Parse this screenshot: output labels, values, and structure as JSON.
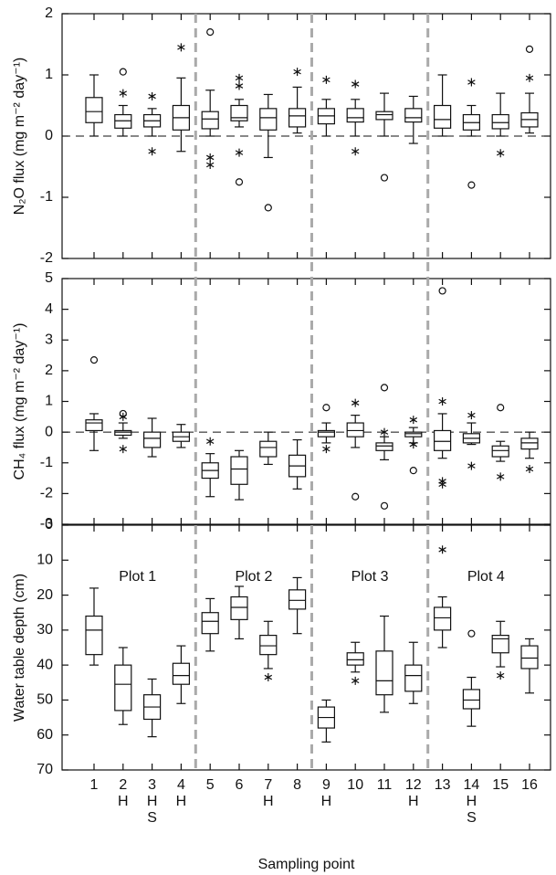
{
  "chart_data": [
    {
      "type": "box",
      "ylabel": "N₂O flux (mg m⁻² day⁻¹)",
      "ylim": [
        -2,
        2
      ],
      "yticks": [
        -2,
        -1,
        0,
        1,
        2
      ],
      "reference_line": 0,
      "boxes": [
        {
          "min": 0,
          "q1": 0.22,
          "median": 0.4,
          "q3": 0.63,
          "max": 1.0,
          "outliers": [],
          "extremes": []
        },
        {
          "min": 0,
          "q1": 0.13,
          "median": 0.25,
          "q3": 0.35,
          "max": 0.5,
          "outliers": [
            1.05
          ],
          "extremes": [
            0.7
          ]
        },
        {
          "min": 0,
          "q1": 0.15,
          "median": 0.25,
          "q3": 0.35,
          "max": 0.45,
          "outliers": [],
          "extremes": [
            0.65,
            -0.25
          ]
        },
        {
          "min": -0.25,
          "q1": 0.1,
          "median": 0.3,
          "q3": 0.5,
          "max": 0.95,
          "outliers": [],
          "extremes": [
            1.45
          ]
        },
        {
          "min": 0,
          "q1": 0.12,
          "median": 0.28,
          "q3": 0.4,
          "max": 0.75,
          "outliers": [
            1.7
          ],
          "extremes": [
            -0.35,
            -0.47
          ]
        },
        {
          "min": 0.15,
          "q1": 0.25,
          "median": 0.3,
          "q3": 0.5,
          "max": 0.6,
          "outliers": [
            -0.75
          ],
          "extremes": [
            0.95,
            0.82,
            -0.27
          ]
        },
        {
          "min": -0.35,
          "q1": 0.1,
          "median": 0.3,
          "q3": 0.45,
          "max": 0.68,
          "outliers": [
            -1.17
          ],
          "extremes": []
        },
        {
          "min": 0.05,
          "q1": 0.15,
          "median": 0.33,
          "q3": 0.45,
          "max": 0.8,
          "outliers": [],
          "extremes": [
            1.05
          ]
        },
        {
          "min": 0,
          "q1": 0.2,
          "median": 0.33,
          "q3": 0.45,
          "max": 0.6,
          "outliers": [],
          "extremes": [
            0.92
          ]
        },
        {
          "min": 0,
          "q1": 0.23,
          "median": 0.3,
          "q3": 0.45,
          "max": 0.6,
          "outliers": [],
          "extremes": [
            0.85,
            -0.25
          ]
        },
        {
          "min": 0,
          "q1": 0.27,
          "median": 0.35,
          "q3": 0.4,
          "max": 0.7,
          "outliers": [
            -0.68
          ],
          "extremes": []
        },
        {
          "min": -0.12,
          "q1": 0.23,
          "median": 0.3,
          "q3": 0.45,
          "max": 0.65,
          "outliers": [],
          "extremes": []
        },
        {
          "min": 0,
          "q1": 0.13,
          "median": 0.27,
          "q3": 0.5,
          "max": 1.0,
          "outliers": [],
          "extremes": []
        },
        {
          "min": 0,
          "q1": 0.1,
          "median": 0.22,
          "q3": 0.35,
          "max": 0.5,
          "outliers": [
            -0.8
          ],
          "extremes": [
            0.88
          ]
        },
        {
          "min": 0,
          "q1": 0.12,
          "median": 0.22,
          "q3": 0.35,
          "max": 0.7,
          "outliers": [],
          "extremes": [
            -0.28
          ]
        },
        {
          "min": 0.05,
          "q1": 0.15,
          "median": 0.27,
          "q3": 0.38,
          "max": 0.7,
          "outliers": [
            1.42
          ],
          "extremes": [
            0.95
          ]
        }
      ]
    },
    {
      "type": "box",
      "ylabel": "CH₄ flux (mg m⁻² day⁻¹)",
      "ylim": [
        -3,
        5
      ],
      "yticks": [
        -3,
        -2,
        -1,
        0,
        1,
        2,
        3,
        4,
        5
      ],
      "reference_line": 0,
      "boxes": [
        {
          "min": -0.6,
          "q1": 0.05,
          "median": 0.3,
          "q3": 0.4,
          "max": 0.6,
          "outliers": [
            2.35
          ],
          "extremes": []
        },
        {
          "min": -0.2,
          "q1": -0.1,
          "median": 0,
          "q3": 0.05,
          "max": 0.3,
          "outliers": [
            0.6
          ],
          "extremes": [
            0.5,
            -0.55
          ]
        },
        {
          "min": -0.8,
          "q1": -0.5,
          "median": -0.2,
          "q3": 0,
          "max": 0.45,
          "outliers": [],
          "extremes": []
        },
        {
          "min": -0.5,
          "q1": -0.3,
          "median": -0.15,
          "q3": 0,
          "max": 0.25,
          "outliers": [],
          "extremes": []
        },
        {
          "min": -2.1,
          "q1": -1.5,
          "median": -1.25,
          "q3": -1.0,
          "max": -0.7,
          "outliers": [],
          "extremes": [
            -0.3
          ]
        },
        {
          "min": -2.2,
          "q1": -1.7,
          "median": -1.2,
          "q3": -0.8,
          "max": -0.6,
          "outliers": [],
          "extremes": []
        },
        {
          "min": -1.05,
          "q1": -0.8,
          "median": -0.5,
          "q3": -0.3,
          "max": 0,
          "outliers": [],
          "extremes": []
        },
        {
          "min": -1.85,
          "q1": -1.45,
          "median": -1.1,
          "q3": -0.75,
          "max": -0.25,
          "outliers": [],
          "extremes": []
        },
        {
          "min": -0.35,
          "q1": -0.15,
          "median": 0,
          "q3": 0.05,
          "max": 0.3,
          "outliers": [
            0.8
          ],
          "extremes": [
            -0.55
          ]
        },
        {
          "min": -0.5,
          "q1": -0.15,
          "median": 0.05,
          "q3": 0.3,
          "max": 0.55,
          "outliers": [
            -2.1
          ],
          "extremes": [
            0.95
          ]
        },
        {
          "min": -0.9,
          "q1": -0.6,
          "median": -0.45,
          "q3": -0.35,
          "max": -0.15,
          "outliers": [
            1.45,
            -2.4
          ],
          "extremes": [
            0
          ]
        },
        {
          "min": -0.35,
          "q1": -0.15,
          "median": -0.05,
          "q3": 0,
          "max": 0.15,
          "outliers": [
            -1.25
          ],
          "extremes": [
            0.4,
            -0.4
          ]
        },
        {
          "min": -0.85,
          "q1": -0.6,
          "median": -0.3,
          "q3": 0.05,
          "max": 0.6,
          "outliers": [
            4.6
          ],
          "extremes": [
            1.0,
            -1.6,
            -1.7
          ]
        },
        {
          "min": -0.4,
          "q1": -0.35,
          "median": -0.2,
          "q3": -0.05,
          "max": 0.3,
          "outliers": [],
          "extremes": [
            0.55,
            -1.1
          ]
        },
        {
          "min": -0.95,
          "q1": -0.8,
          "median": -0.6,
          "q3": -0.45,
          "max": -0.3,
          "outliers": [
            0.8
          ],
          "extremes": [
            -1.45
          ]
        },
        {
          "min": -0.85,
          "q1": -0.55,
          "median": -0.35,
          "q3": -0.2,
          "max": 0,
          "outliers": [],
          "extremes": [
            -1.2
          ]
        }
      ]
    },
    {
      "type": "box",
      "ylabel": "Water table depth (cm)",
      "xlabel": "Sampling point",
      "ylim": [
        70,
        0
      ],
      "yticks": [
        0,
        10,
        20,
        30,
        40,
        50,
        60,
        70
      ],
      "plot_labels": [
        "Plot 1",
        "Plot 2",
        "Plot 3",
        "Plot 4"
      ],
      "categories": [
        [
          "1"
        ],
        [
          "2",
          "H"
        ],
        [
          "3",
          "H",
          "S"
        ],
        [
          "4",
          "H"
        ],
        [
          "5"
        ],
        [
          "6"
        ],
        [
          "7",
          "H"
        ],
        [
          "8"
        ],
        [
          "9",
          "H"
        ],
        [
          "10"
        ],
        [
          "11"
        ],
        [
          "12",
          "H"
        ],
        [
          "13"
        ],
        [
          "14",
          "H",
          "S"
        ],
        [
          "15"
        ],
        [
          "16"
        ]
      ],
      "boxes": [
        {
          "min": 18,
          "q1": 26,
          "median": 30,
          "q3": 37,
          "max": 40,
          "outliers": [],
          "extremes": []
        },
        {
          "min": 35,
          "q1": 40,
          "median": 45.5,
          "q3": 53,
          "max": 57,
          "outliers": [],
          "extremes": []
        },
        {
          "min": 44,
          "q1": 48.5,
          "median": 52,
          "q3": 55.5,
          "max": 60.5,
          "outliers": [],
          "extremes": []
        },
        {
          "min": 34.5,
          "q1": 39.5,
          "median": 43,
          "q3": 45.5,
          "max": 51,
          "outliers": [],
          "extremes": []
        },
        {
          "min": 21,
          "q1": 25,
          "median": 27.5,
          "q3": 31,
          "max": 36,
          "outliers": [],
          "extremes": []
        },
        {
          "min": 17.5,
          "q1": 20.5,
          "median": 23.5,
          "q3": 27,
          "max": 32.5,
          "outliers": [],
          "extremes": []
        },
        {
          "min": 27.5,
          "q1": 31.5,
          "median": 34.5,
          "q3": 37,
          "max": 41,
          "outliers": [],
          "extremes": [
            43.5
          ]
        },
        {
          "min": 15,
          "q1": 18.5,
          "median": 21.5,
          "q3": 24,
          "max": 31,
          "outliers": [],
          "extremes": []
        },
        {
          "min": 50,
          "q1": 52,
          "median": 55,
          "q3": 58,
          "max": 62,
          "outliers": [],
          "extremes": []
        },
        {
          "min": 33.5,
          "q1": 36.5,
          "median": 38.5,
          "q3": 40,
          "max": 42,
          "outliers": [],
          "extremes": [
            44.5
          ]
        },
        {
          "min": 26,
          "q1": 36,
          "median": 44.5,
          "q3": 48.5,
          "max": 53.5,
          "outliers": [],
          "extremes": []
        },
        {
          "min": 33.5,
          "q1": 40,
          "median": 43,
          "q3": 47.5,
          "max": 51,
          "outliers": [],
          "extremes": []
        },
        {
          "min": 20.5,
          "q1": 23.5,
          "median": 26.5,
          "q3": 30,
          "max": 35,
          "outliers": [],
          "extremes": [
            7
          ]
        },
        {
          "min": 43.5,
          "q1": 47,
          "median": 50,
          "q3": 52.5,
          "max": 57.5,
          "outliers": [
            31
          ],
          "extremes": []
        },
        {
          "min": 27.5,
          "q1": 31.5,
          "median": 32.5,
          "q3": 36.5,
          "max": 40.5,
          "outliers": [],
          "extremes": [
            43
          ]
        },
        {
          "min": 32.5,
          "q1": 34.5,
          "median": 38,
          "q3": 41,
          "max": 48,
          "outliers": [],
          "extremes": []
        }
      ]
    }
  ]
}
